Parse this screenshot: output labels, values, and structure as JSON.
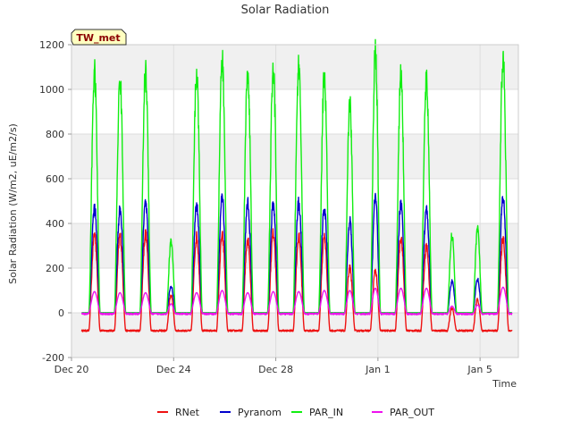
{
  "chart_data": {
    "type": "line",
    "title": "Solar Radiation",
    "xlabel": "Time",
    "ylabel": "Solar Radiation (W/m2, uE/m2/s)",
    "badge": "TW_met",
    "xlim": [
      0,
      17.5
    ],
    "ylim": [
      -200,
      1200
    ],
    "x_ticks": [
      {
        "x": 0,
        "label": "Dec 20"
      },
      {
        "x": 4,
        "label": "Dec 24"
      },
      {
        "x": 8,
        "label": "Dec 28"
      },
      {
        "x": 12,
        "label": "Jan 1"
      },
      {
        "x": 16,
        "label": "Jan 5"
      }
    ],
    "y_ticks": [
      -200,
      0,
      200,
      400,
      600,
      800,
      1000,
      1200
    ],
    "grid": true,
    "legend_position": "bottom",
    "series": [
      {
        "name": "RNet",
        "color": "#ee1111",
        "night": -80,
        "days": [
          {
            "c": 0.9,
            "peak": 355,
            "w": 0.22
          },
          {
            "c": 1.9,
            "peak": 345,
            "w": 0.22
          },
          {
            "c": 2.9,
            "peak": 355,
            "w": 0.22
          },
          {
            "c": 3.9,
            "peak": 80,
            "w": 0.18
          },
          {
            "c": 4.9,
            "peak": 340,
            "w": 0.22
          },
          {
            "c": 5.9,
            "peak": 345,
            "w": 0.22
          },
          {
            "c": 6.9,
            "peak": 330,
            "w": 0.22
          },
          {
            "c": 7.9,
            "peak": 355,
            "w": 0.22
          },
          {
            "c": 8.9,
            "peak": 340,
            "w": 0.22
          },
          {
            "c": 9.9,
            "peak": 340,
            "w": 0.22
          },
          {
            "c": 10.9,
            "peak": 200,
            "w": 0.2
          },
          {
            "c": 11.9,
            "peak": 190,
            "w": 0.2
          },
          {
            "c": 12.9,
            "peak": 340,
            "w": 0.22
          },
          {
            "c": 13.9,
            "peak": 300,
            "w": 0.22
          },
          {
            "c": 14.9,
            "peak": 20,
            "w": 0.18
          },
          {
            "c": 15.9,
            "peak": 60,
            "w": 0.18
          },
          {
            "c": 16.9,
            "peak": 335,
            "w": 0.22
          }
        ]
      },
      {
        "name": "Pyranom",
        "color": "#0000cc",
        "night": 0,
        "days": [
          {
            "c": 0.9,
            "peak": 470,
            "w": 0.22
          },
          {
            "c": 1.9,
            "peak": 460,
            "w": 0.22
          },
          {
            "c": 2.9,
            "peak": 490,
            "w": 0.22
          },
          {
            "c": 3.9,
            "peak": 120,
            "w": 0.18
          },
          {
            "c": 4.9,
            "peak": 480,
            "w": 0.22
          },
          {
            "c": 5.9,
            "peak": 515,
            "w": 0.22
          },
          {
            "c": 6.9,
            "peak": 490,
            "w": 0.22
          },
          {
            "c": 7.9,
            "peak": 485,
            "w": 0.22
          },
          {
            "c": 8.9,
            "peak": 490,
            "w": 0.22
          },
          {
            "c": 9.9,
            "peak": 470,
            "w": 0.22
          },
          {
            "c": 10.9,
            "peak": 410,
            "w": 0.2
          },
          {
            "c": 11.9,
            "peak": 520,
            "w": 0.2
          },
          {
            "c": 12.9,
            "peak": 485,
            "w": 0.22
          },
          {
            "c": 13.9,
            "peak": 460,
            "w": 0.22
          },
          {
            "c": 14.9,
            "peak": 140,
            "w": 0.18
          },
          {
            "c": 15.9,
            "peak": 150,
            "w": 0.18
          },
          {
            "c": 16.9,
            "peak": 515,
            "w": 0.22
          }
        ]
      },
      {
        "name": "PAR_IN",
        "color": "#11ee11",
        "night": 0,
        "days": [
          {
            "c": 0.9,
            "peak": 1075,
            "w": 0.22
          },
          {
            "c": 1.9,
            "peak": 1045,
            "w": 0.22
          },
          {
            "c": 2.9,
            "peak": 1080,
            "w": 0.22
          },
          {
            "c": 3.9,
            "peak": 320,
            "w": 0.18
          },
          {
            "c": 4.9,
            "peak": 1070,
            "w": 0.22
          },
          {
            "c": 5.9,
            "peak": 1130,
            "w": 0.22
          },
          {
            "c": 6.9,
            "peak": 1080,
            "w": 0.22
          },
          {
            "c": 7.9,
            "peak": 1085,
            "w": 0.22
          },
          {
            "c": 8.9,
            "peak": 1105,
            "w": 0.22
          },
          {
            "c": 9.9,
            "peak": 1055,
            "w": 0.22
          },
          {
            "c": 10.9,
            "peak": 945,
            "w": 0.2
          },
          {
            "c": 11.9,
            "peak": 1180,
            "w": 0.2
          },
          {
            "c": 12.9,
            "peak": 1060,
            "w": 0.22
          },
          {
            "c": 13.9,
            "peak": 1035,
            "w": 0.22
          },
          {
            "c": 14.9,
            "peak": 345,
            "w": 0.18
          },
          {
            "c": 15.9,
            "peak": 380,
            "w": 0.18
          },
          {
            "c": 16.9,
            "peak": 1140,
            "w": 0.22
          }
        ]
      },
      {
        "name": "PAR_OUT",
        "color": "#ee11ee",
        "night": -5,
        "days": [
          {
            "c": 0.9,
            "peak": 95,
            "w": 0.24
          },
          {
            "c": 1.9,
            "peak": 90,
            "w": 0.24
          },
          {
            "c": 2.9,
            "peak": 90,
            "w": 0.24
          },
          {
            "c": 3.9,
            "peak": 40,
            "w": 0.18
          },
          {
            "c": 4.9,
            "peak": 90,
            "w": 0.24
          },
          {
            "c": 5.9,
            "peak": 100,
            "w": 0.24
          },
          {
            "c": 6.9,
            "peak": 90,
            "w": 0.24
          },
          {
            "c": 7.9,
            "peak": 95,
            "w": 0.24
          },
          {
            "c": 8.9,
            "peak": 95,
            "w": 0.24
          },
          {
            "c": 9.9,
            "peak": 100,
            "w": 0.24
          },
          {
            "c": 10.9,
            "peak": 100,
            "w": 0.22
          },
          {
            "c": 11.9,
            "peak": 110,
            "w": 0.22
          },
          {
            "c": 12.9,
            "peak": 110,
            "w": 0.24
          },
          {
            "c": 13.9,
            "peak": 110,
            "w": 0.24
          },
          {
            "c": 14.9,
            "peak": 30,
            "w": 0.18
          },
          {
            "c": 15.9,
            "peak": 35,
            "w": 0.18
          },
          {
            "c": 16.9,
            "peak": 115,
            "w": 0.24
          }
        ]
      }
    ]
  }
}
